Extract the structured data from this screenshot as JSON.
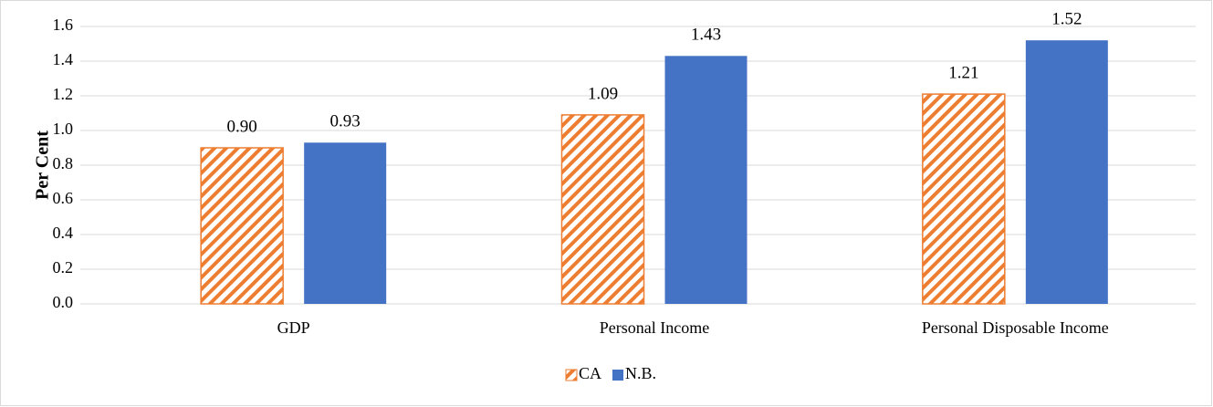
{
  "chart_data": {
    "type": "bar",
    "y_label": "Per Cent",
    "categories": [
      "GDP",
      "Personal Income",
      "Personal Disposable Income"
    ],
    "series": [
      {
        "name": "CA",
        "color": "#ed7d31",
        "pattern": "hatch",
        "values": [
          0.9,
          1.09,
          1.21
        ],
        "value_labels": [
          "0.90",
          "1.09",
          "1.21"
        ]
      },
      {
        "name": "N.B.",
        "color": "#4472c4",
        "values": [
          0.93,
          1.43,
          1.52
        ],
        "value_labels": [
          "0.93",
          "1.43",
          "1.52"
        ]
      }
    ],
    "ylim": [
      0,
      1.6
    ],
    "yticks": [
      {
        "value": 0,
        "label": "0.0"
      },
      0.2,
      0.4,
      0.6,
      0.8,
      {
        "value": 1,
        "label": "1.0"
      },
      1.2,
      1.4,
      1.6
    ],
    "grid": true,
    "legend": "bottom"
  }
}
